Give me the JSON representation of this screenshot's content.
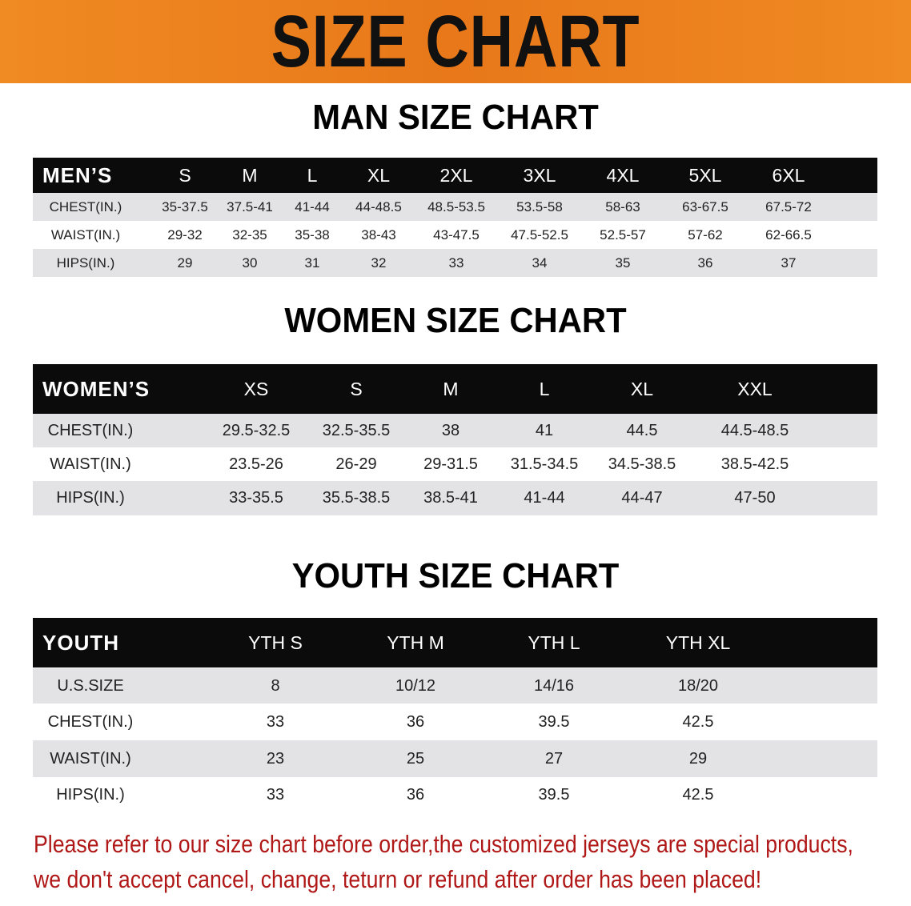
{
  "banner": {
    "title": "SIZE CHART"
  },
  "colors": {
    "banner": "#f08a22",
    "header_bg": "#0b0b0b",
    "stripe": "#e3e3e5",
    "note": "#b01818"
  },
  "men": {
    "title": "MAN SIZE CHART",
    "header": [
      "MEN’S",
      "S",
      "M",
      "L",
      "XL",
      "2XL",
      "3XL",
      "4XL",
      "5XL",
      "6XL"
    ],
    "rows": [
      [
        "CHEST(IN.)",
        "35-37.5",
        "37.5-41",
        "41-44",
        "44-48.5",
        "48.5-53.5",
        "53.5-58",
        "58-63",
        "63-67.5",
        "67.5-72"
      ],
      [
        "WAIST(IN.)",
        "29-32",
        "32-35",
        "35-38",
        "38-43",
        "43-47.5",
        "47.5-52.5",
        "52.5-57",
        "57-62",
        "62-66.5"
      ],
      [
        "HIPS(IN.)",
        "29",
        "30",
        "31",
        "32",
        "33",
        "34",
        "35",
        "36",
        "37"
      ]
    ]
  },
  "women": {
    "title": "WOMEN SIZE CHART",
    "header": [
      "WOMEN’S",
      "XS",
      "S",
      "M",
      "L",
      "XL",
      "XXL"
    ],
    "rows": [
      [
        "CHEST(IN.)",
        "29.5-32.5",
        "32.5-35.5",
        "38",
        "41",
        "44.5",
        "44.5-48.5"
      ],
      [
        "WAIST(IN.)",
        "23.5-26",
        "26-29",
        "29-31.5",
        "31.5-34.5",
        "34.5-38.5",
        "38.5-42.5"
      ],
      [
        "HIPS(IN.)",
        "33-35.5",
        "35.5-38.5",
        "38.5-41",
        "41-44",
        "44-47",
        "47-50"
      ]
    ]
  },
  "youth": {
    "title": "YOUTH SIZE CHART",
    "header": [
      "YOUTH",
      "YTH S",
      "YTH M",
      "YTH L",
      "YTH XL"
    ],
    "rows": [
      [
        "U.S.SIZE",
        "8",
        "10/12",
        "14/16",
        "18/20"
      ],
      [
        "CHEST(IN.)",
        "33",
        "36",
        "39.5",
        "42.5"
      ],
      [
        "WAIST(IN.)",
        "23",
        "25",
        "27",
        "29"
      ],
      [
        "HIPS(IN.)",
        "33",
        "36",
        "39.5",
        "42.5"
      ]
    ]
  },
  "note": {
    "line1": "Please refer to our size chart before order,the customized jerseys are special products,",
    "line2": "we don't accept cancel, change, teturn or refund after order has been placed!"
  }
}
